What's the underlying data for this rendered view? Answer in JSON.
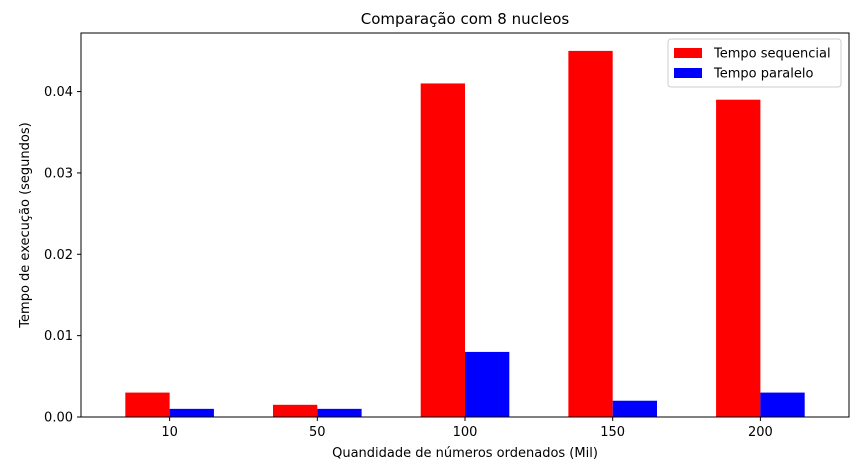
{
  "chart_data": {
    "type": "bar",
    "title": "Comparação com 8 nucleos",
    "xlabel": "Quandidade de números ordenados (Mil)",
    "ylabel": "Tempo de execução (segundos)",
    "categories": [
      "10",
      "50",
      "100",
      "150",
      "200"
    ],
    "series": [
      {
        "name": "Tempo sequencial",
        "color": "#ff0000",
        "values": [
          0.003,
          0.0015,
          0.041,
          0.045,
          0.039
        ]
      },
      {
        "name": "Tempo paralelo",
        "color": "#0000ff",
        "values": [
          0.001,
          0.001,
          0.008,
          0.002,
          0.003
        ]
      }
    ],
    "ylim": [
      0,
      0.0472
    ],
    "yticks": [
      0.0,
      0.01,
      0.02,
      0.03,
      0.04
    ],
    "ytick_labels": [
      "0.00",
      "0.01",
      "0.02",
      "0.03",
      "0.04"
    ],
    "legend_position": "top-right",
    "grid": false
  }
}
